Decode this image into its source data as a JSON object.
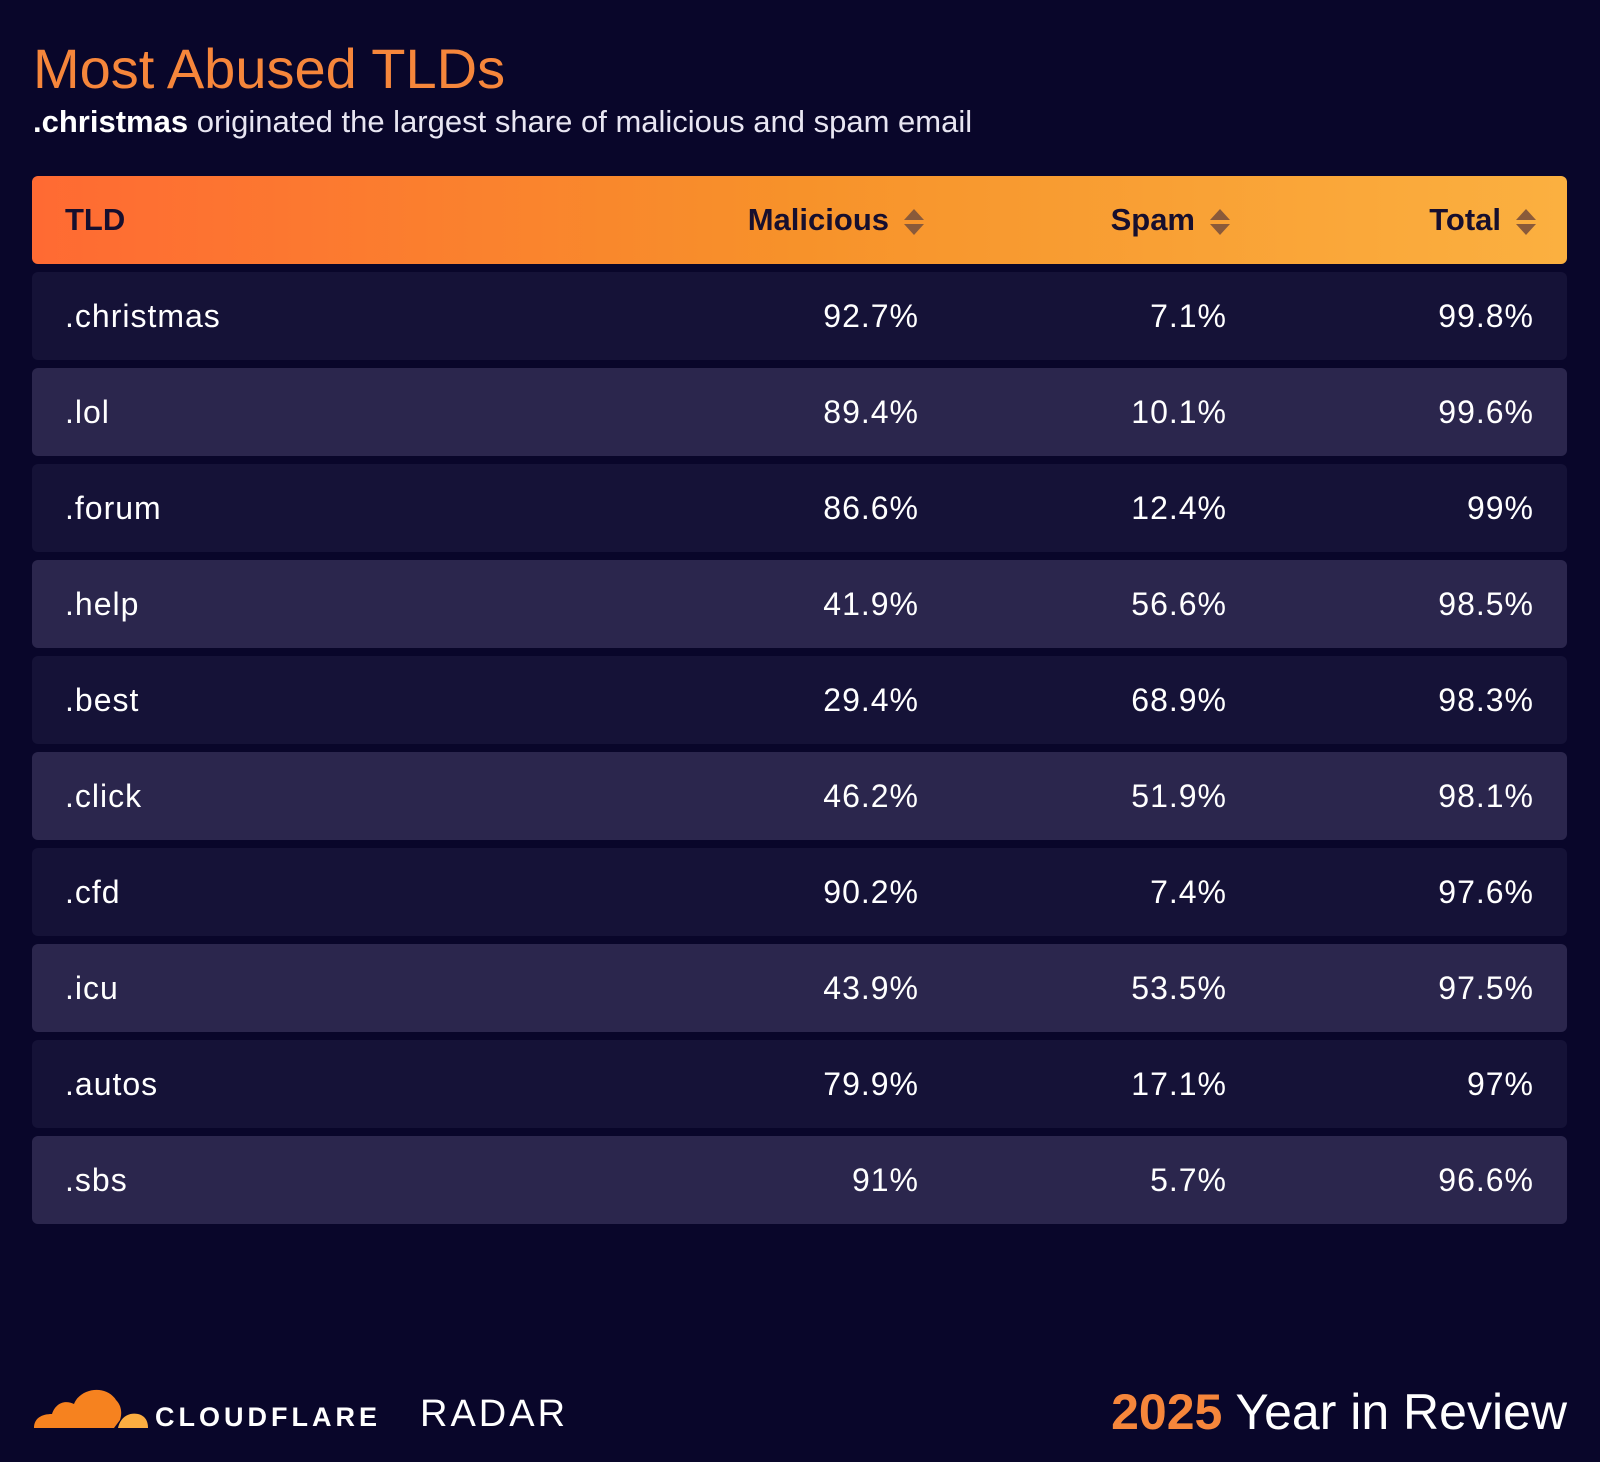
{
  "header": {
    "title": "Most Abused TLDs",
    "subtitle": {
      "bold": ".christmas",
      "text": "originated the largest share of malicious and spam email"
    }
  },
  "table": {
    "columns": [
      "TLD",
      "Malicious",
      "Spam",
      "Total"
    ],
    "rows": [
      [
        ".christmas",
        "92.7%",
        "7.1%",
        "99.8%"
      ],
      [
        ".lol",
        "89.4%",
        "10.1%",
        "99.6%"
      ],
      [
        ".forum",
        "86.6%",
        "12.4%",
        "99%"
      ],
      [
        ".help",
        "41.9%",
        "56.6%",
        "98.5%"
      ],
      [
        ".best",
        "29.4%",
        "68.9%",
        "98.3%"
      ],
      [
        ".click",
        "46.2%",
        "51.9%",
        "98.1%"
      ],
      [
        ".cfd",
        "90.2%",
        "7.4%",
        "97.6%"
      ],
      [
        ".icu",
        "43.9%",
        "53.5%",
        "97.5%"
      ],
      [
        ".autos",
        "79.9%",
        "17.1%",
        "97%"
      ],
      [
        ".sbs",
        "91%",
        "5.7%",
        "96.6%"
      ]
    ]
  },
  "footer": {
    "brand": "CLOUDFLARE",
    "product": "RADAR",
    "year": "2025",
    "label": "Year in Review"
  }
}
